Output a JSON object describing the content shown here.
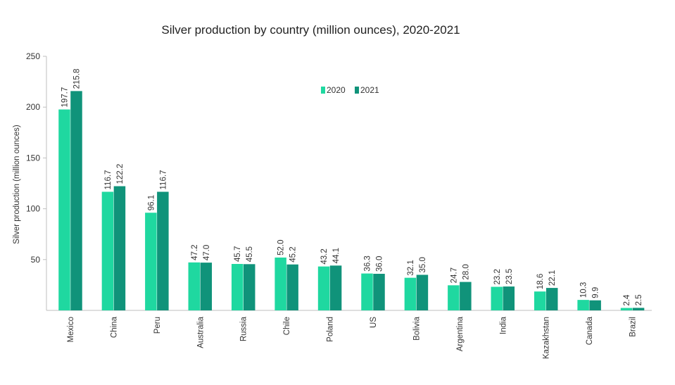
{
  "chart_data": {
    "type": "bar",
    "title": "Silver production by country (million ounces), 2020-2021",
    "xlabel": "",
    "ylabel": "Silver production (million ounces)",
    "categories": [
      "Mexico",
      "China",
      "Peru",
      "Australia",
      "Russia",
      "Chile",
      "Poland",
      "US",
      "Bolivia",
      "Argentina",
      "India",
      "Kazakhstan",
      "Canada",
      "Brazil"
    ],
    "series": [
      {
        "name": "2020",
        "color": "#1fd8a0",
        "values": [
          197.7,
          116.7,
          96.1,
          47.2,
          45.7,
          52.0,
          43.2,
          36.3,
          32.1,
          24.7,
          23.2,
          18.6,
          10.3,
          2.4
        ],
        "labels": [
          "197.7",
          "116.7",
          "96.1",
          "47.2",
          "45.7",
          "52.0",
          "43.2",
          "36.3",
          "32.1",
          "24.7",
          "23.2",
          "18.6",
          "10.3",
          "2.4"
        ]
      },
      {
        "name": "2021",
        "color": "#10937a",
        "values": [
          215.8,
          122.2,
          116.7,
          47.0,
          45.5,
          45.2,
          44.1,
          36.0,
          35.0,
          28.0,
          23.5,
          22.1,
          9.9,
          2.5
        ],
        "labels": [
          "215.8",
          "122.2",
          "116.7",
          "47.0",
          "45.5",
          "45.2",
          "44.1",
          "36.0",
          "35.0",
          "28.0",
          "23.5",
          "22.1",
          "9.9",
          "2.5"
        ]
      }
    ],
    "ylim": [
      0,
      250
    ],
    "yticks": [
      50,
      100,
      150,
      200,
      250
    ],
    "ytick_labels": [
      "50",
      "100",
      "150",
      "200",
      "250"
    ],
    "grid": false,
    "legend": "top-center",
    "axis_color": "#bfbfbf"
  }
}
